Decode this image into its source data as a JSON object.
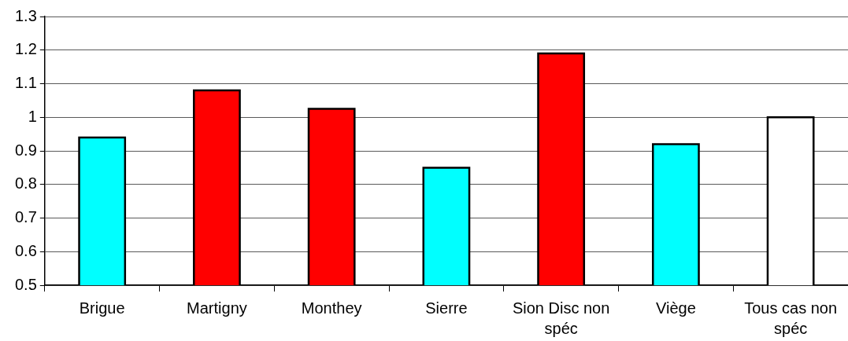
{
  "chart_data": {
    "type": "bar",
    "categories": [
      "Brigue",
      "Martigny",
      "Monthey",
      "Sierre",
      "Sion Disc non spéc",
      "Viège",
      "Tous cas non spéc"
    ],
    "values": [
      0.94,
      1.08,
      1.025,
      0.85,
      1.19,
      0.92,
      1.0
    ],
    "colors": [
      "#00ffff",
      "#ff0000",
      "#ff0000",
      "#00ffff",
      "#ff0000",
      "#00ffff",
      "#ffffff"
    ],
    "ylim": [
      0.5,
      1.3
    ],
    "yticks": [
      0.5,
      0.6,
      0.7,
      0.8,
      0.9,
      1,
      1.1,
      1.2,
      1.3
    ],
    "grid": "y"
  }
}
